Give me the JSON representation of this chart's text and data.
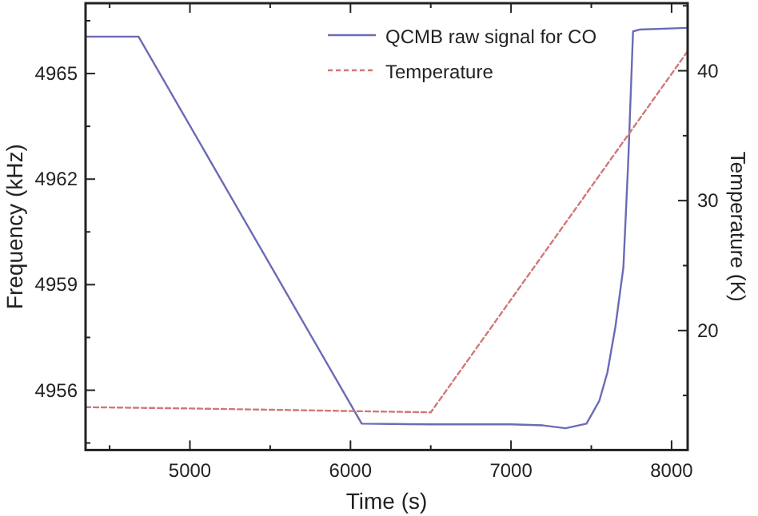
{
  "chart_data": {
    "type": "line",
    "xlabel": "Time (s)",
    "ylabel": "Frequency (kHz)",
    "y2label": "Temperature (K)",
    "xlim": [
      4350,
      8100
    ],
    "xticks": [
      {
        "value": 4500,
        "label": null
      },
      5000,
      {
        "value": 5500,
        "label": null
      },
      6000,
      {
        "value": 6500,
        "label": null
      },
      7000,
      {
        "value": 7500,
        "label": null
      },
      8000
    ],
    "ylim": [
      4954.3,
      4967
    ],
    "yticks": [
      {
        "value": 4954.5,
        "label": null
      },
      4956,
      {
        "value": 4957.5,
        "label": null
      },
      4959,
      {
        "value": 4960.5,
        "label": null
      },
      4962,
      {
        "value": 4963.5,
        "label": null
      },
      4965,
      {
        "value": 4966.5,
        "label": null
      }
    ],
    "y2lim": [
      10.8,
      45.2
    ],
    "y2ticks": [
      {
        "value": 15,
        "label": null
      },
      20,
      {
        "value": 25,
        "label": null
      },
      30,
      {
        "value": 35,
        "label": null
      },
      40,
      {
        "value": 45,
        "label": null
      }
    ],
    "legend": "top right",
    "grid": false,
    "series": [
      {
        "name": "QCMB raw signal for CO",
        "color": "#6b6bb5",
        "line_style": "solid",
        "x": [
          4350,
          4680,
          6070,
          6500,
          7000,
          7200,
          7340,
          7470,
          7550,
          7600,
          7650,
          7700,
          7730,
          7760,
          7800,
          8100
        ],
        "values": [
          4966.05,
          4966.05,
          4955.05,
          4955.03,
          4955.03,
          4955.0,
          4954.92,
          4955.05,
          4955.7,
          4956.5,
          4957.8,
          4959.5,
          4962.5,
          4966.2,
          4966.25,
          4966.3
        ]
      },
      {
        "name": "Temperature",
        "color": "#d07878",
        "line_style": "dashed",
        "axis": "y2",
        "x": [
          4350,
          5000,
          6000,
          6500,
          8100
        ],
        "values": [
          14.1,
          14.0,
          13.8,
          13.7,
          41.5
        ]
      }
    ]
  }
}
